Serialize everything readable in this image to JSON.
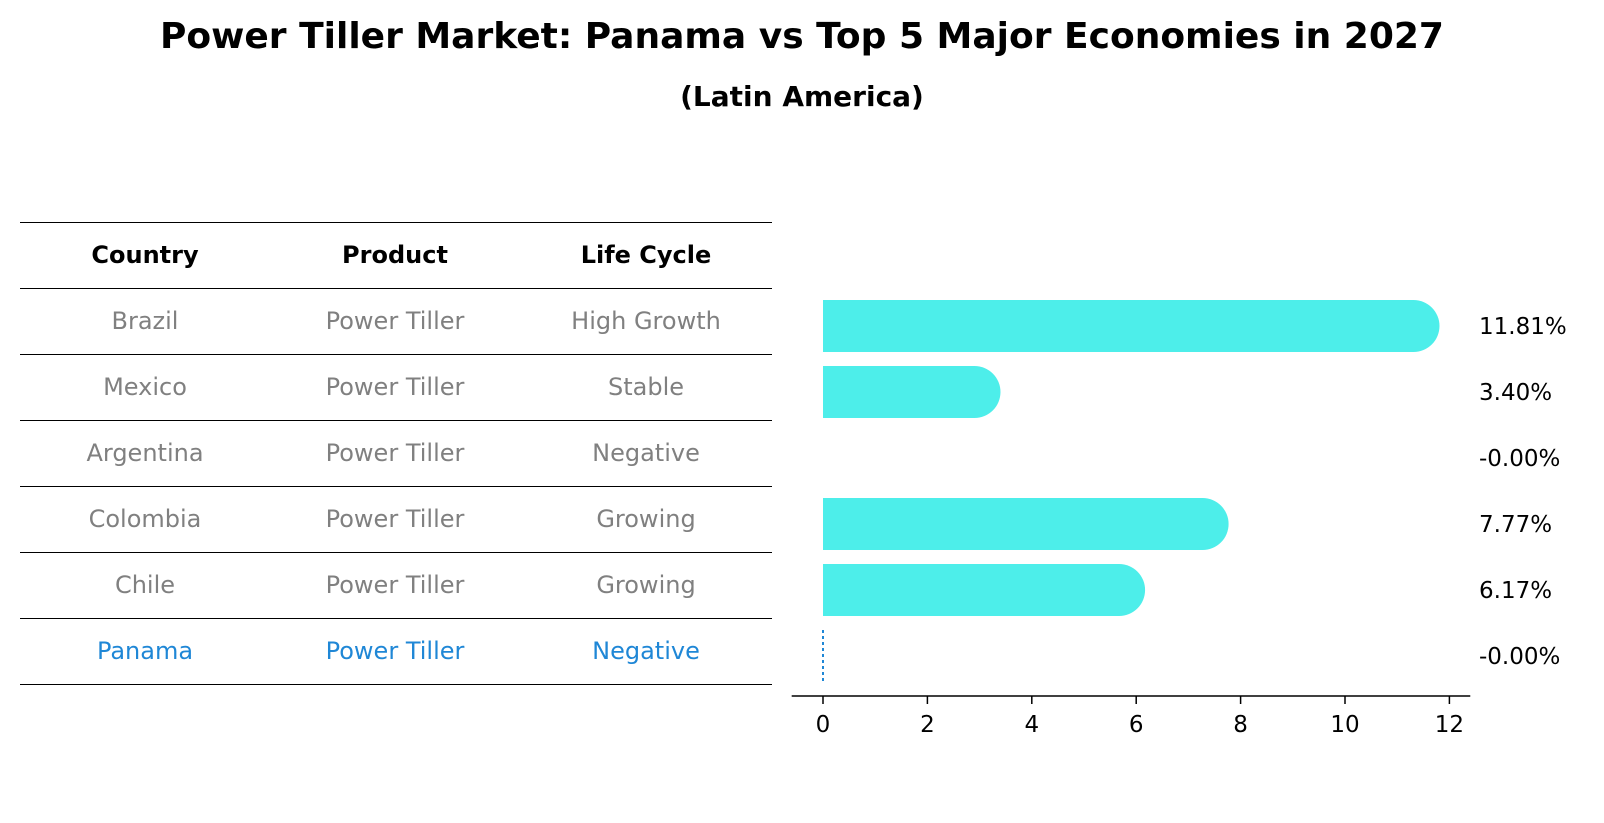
{
  "title": "Power Tiller Market: Panama vs Top 5 Major Economies in 2027",
  "subtitle": "(Latin America)",
  "table": {
    "headers": [
      "Country",
      "Product",
      "Life Cycle"
    ],
    "rows": [
      [
        "Brazil",
        "Power Tiller",
        "High Growth"
      ],
      [
        "Mexico",
        "Power Tiller",
        "Stable"
      ],
      [
        "Argentina",
        "Power Tiller",
        "Negative"
      ],
      [
        "Colombia",
        "Power Tiller",
        "Growing"
      ],
      [
        "Chile",
        "Power Tiller",
        "Growing"
      ],
      [
        "Panama",
        "Power Tiller",
        "Negative"
      ]
    ]
  },
  "colors": {
    "bar": "#4deeea",
    "highlight": "#1f87d6",
    "muted": "#808080"
  },
  "chart_data": {
    "type": "bar",
    "orientation": "horizontal",
    "categories": [
      "Brazil",
      "Mexico",
      "Argentina",
      "Colombia",
      "Chile",
      "Panama"
    ],
    "values": [
      11.81,
      3.4,
      -0.0,
      7.77,
      6.17,
      -0.0
    ],
    "data_labels": [
      "11.81%",
      "3.40%",
      "-0.00%",
      "7.77%",
      "6.17%",
      "-0.00%"
    ],
    "xticks": [
      0,
      2,
      4,
      6,
      8,
      10,
      12
    ],
    "xlim": [
      -0.6,
      12.4
    ],
    "grid": false,
    "highlight_category": "Panama"
  }
}
